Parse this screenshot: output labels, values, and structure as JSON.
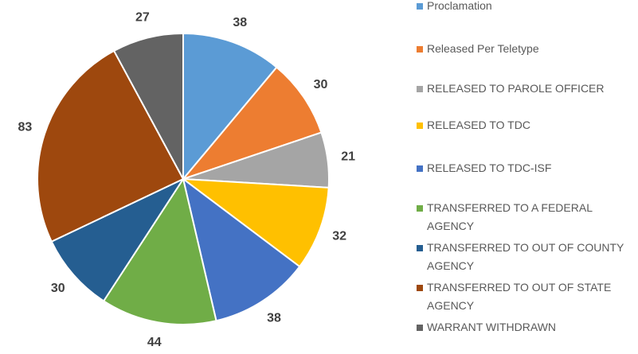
{
  "chart_data": {
    "type": "pie",
    "categories": [
      "Proclamation",
      "Released Per Teletype",
      "RELEASED TO PAROLE OFFICER",
      "RELEASED TO TDC",
      "RELEASED TO TDC-ISF",
      "TRANSFERRED TO A FEDERAL AGENCY",
      "TRANSFERRED TO OUT OF COUNTY AGENCY",
      "TRANSFERRED TO OUT OF STATE AGENCY",
      "WARRANT WITHDRAWN"
    ],
    "values": [
      38,
      30,
      21,
      32,
      38,
      44,
      30,
      83,
      27
    ],
    "colors": [
      "#5b9bd5",
      "#ed7d31",
      "#a5a5a5",
      "#ffc000",
      "#4472c4",
      "#70ad47",
      "#255e91",
      "#9e480e",
      "#636363"
    ],
    "legend": "right"
  }
}
